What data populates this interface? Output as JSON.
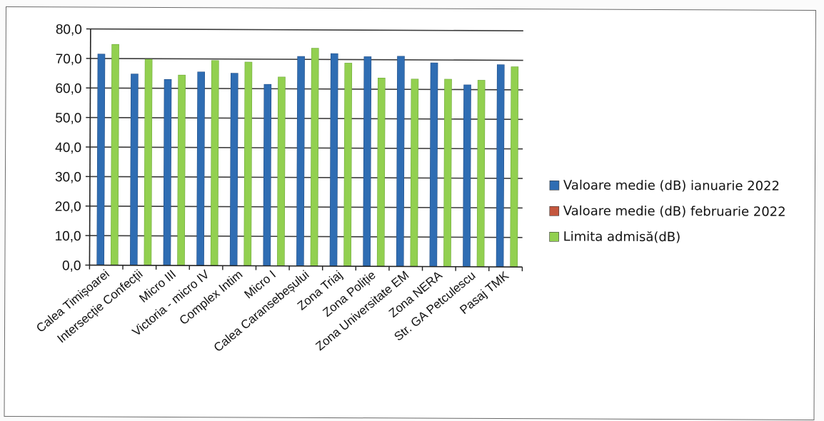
{
  "chart_data": {
    "type": "bar",
    "categories": [
      "Calea Timișoarei",
      "Intersecție Confecții",
      "Micro III",
      "Victoria - micro IV",
      "Complex Intim",
      "Micro I",
      "Calea Caransebeșului",
      "Zona Triaj",
      "Zona Poliție",
      "Zona Universitate EM",
      "Zona NERA",
      "Str. GA Petculescu",
      "Pasaj TMK"
    ],
    "series": [
      {
        "name": "Valoare medie (dB) ianuarie 2022",
        "color": "#2f6db3",
        "values": [
          71.5,
          64.8,
          63.0,
          65.6,
          65.2,
          61.5,
          71.0,
          72.0,
          71.0,
          71.2,
          69.0,
          61.6,
          68.5
        ]
      },
      {
        "name": "Valoare medie (dB) februarie 2022",
        "color": "#c4573e",
        "values": [
          null,
          null,
          null,
          null,
          null,
          null,
          null,
          null,
          null,
          null,
          null,
          null,
          null
        ]
      },
      {
        "name": "Limita admisă(dB)",
        "color": "#92d050",
        "values": [
          74.8,
          69.8,
          64.5,
          69.5,
          69.0,
          64.0,
          73.8,
          68.8,
          63.8,
          63.5,
          63.5,
          63.2,
          67.8
        ]
      }
    ],
    "y_ticks": [
      "0,0",
      "10,0",
      "20,0",
      "30,0",
      "40,0",
      "50,0",
      "60,0",
      "70,0",
      "80,0"
    ],
    "ylim": [
      0,
      80
    ],
    "grid": true,
    "legend_position": "right"
  }
}
